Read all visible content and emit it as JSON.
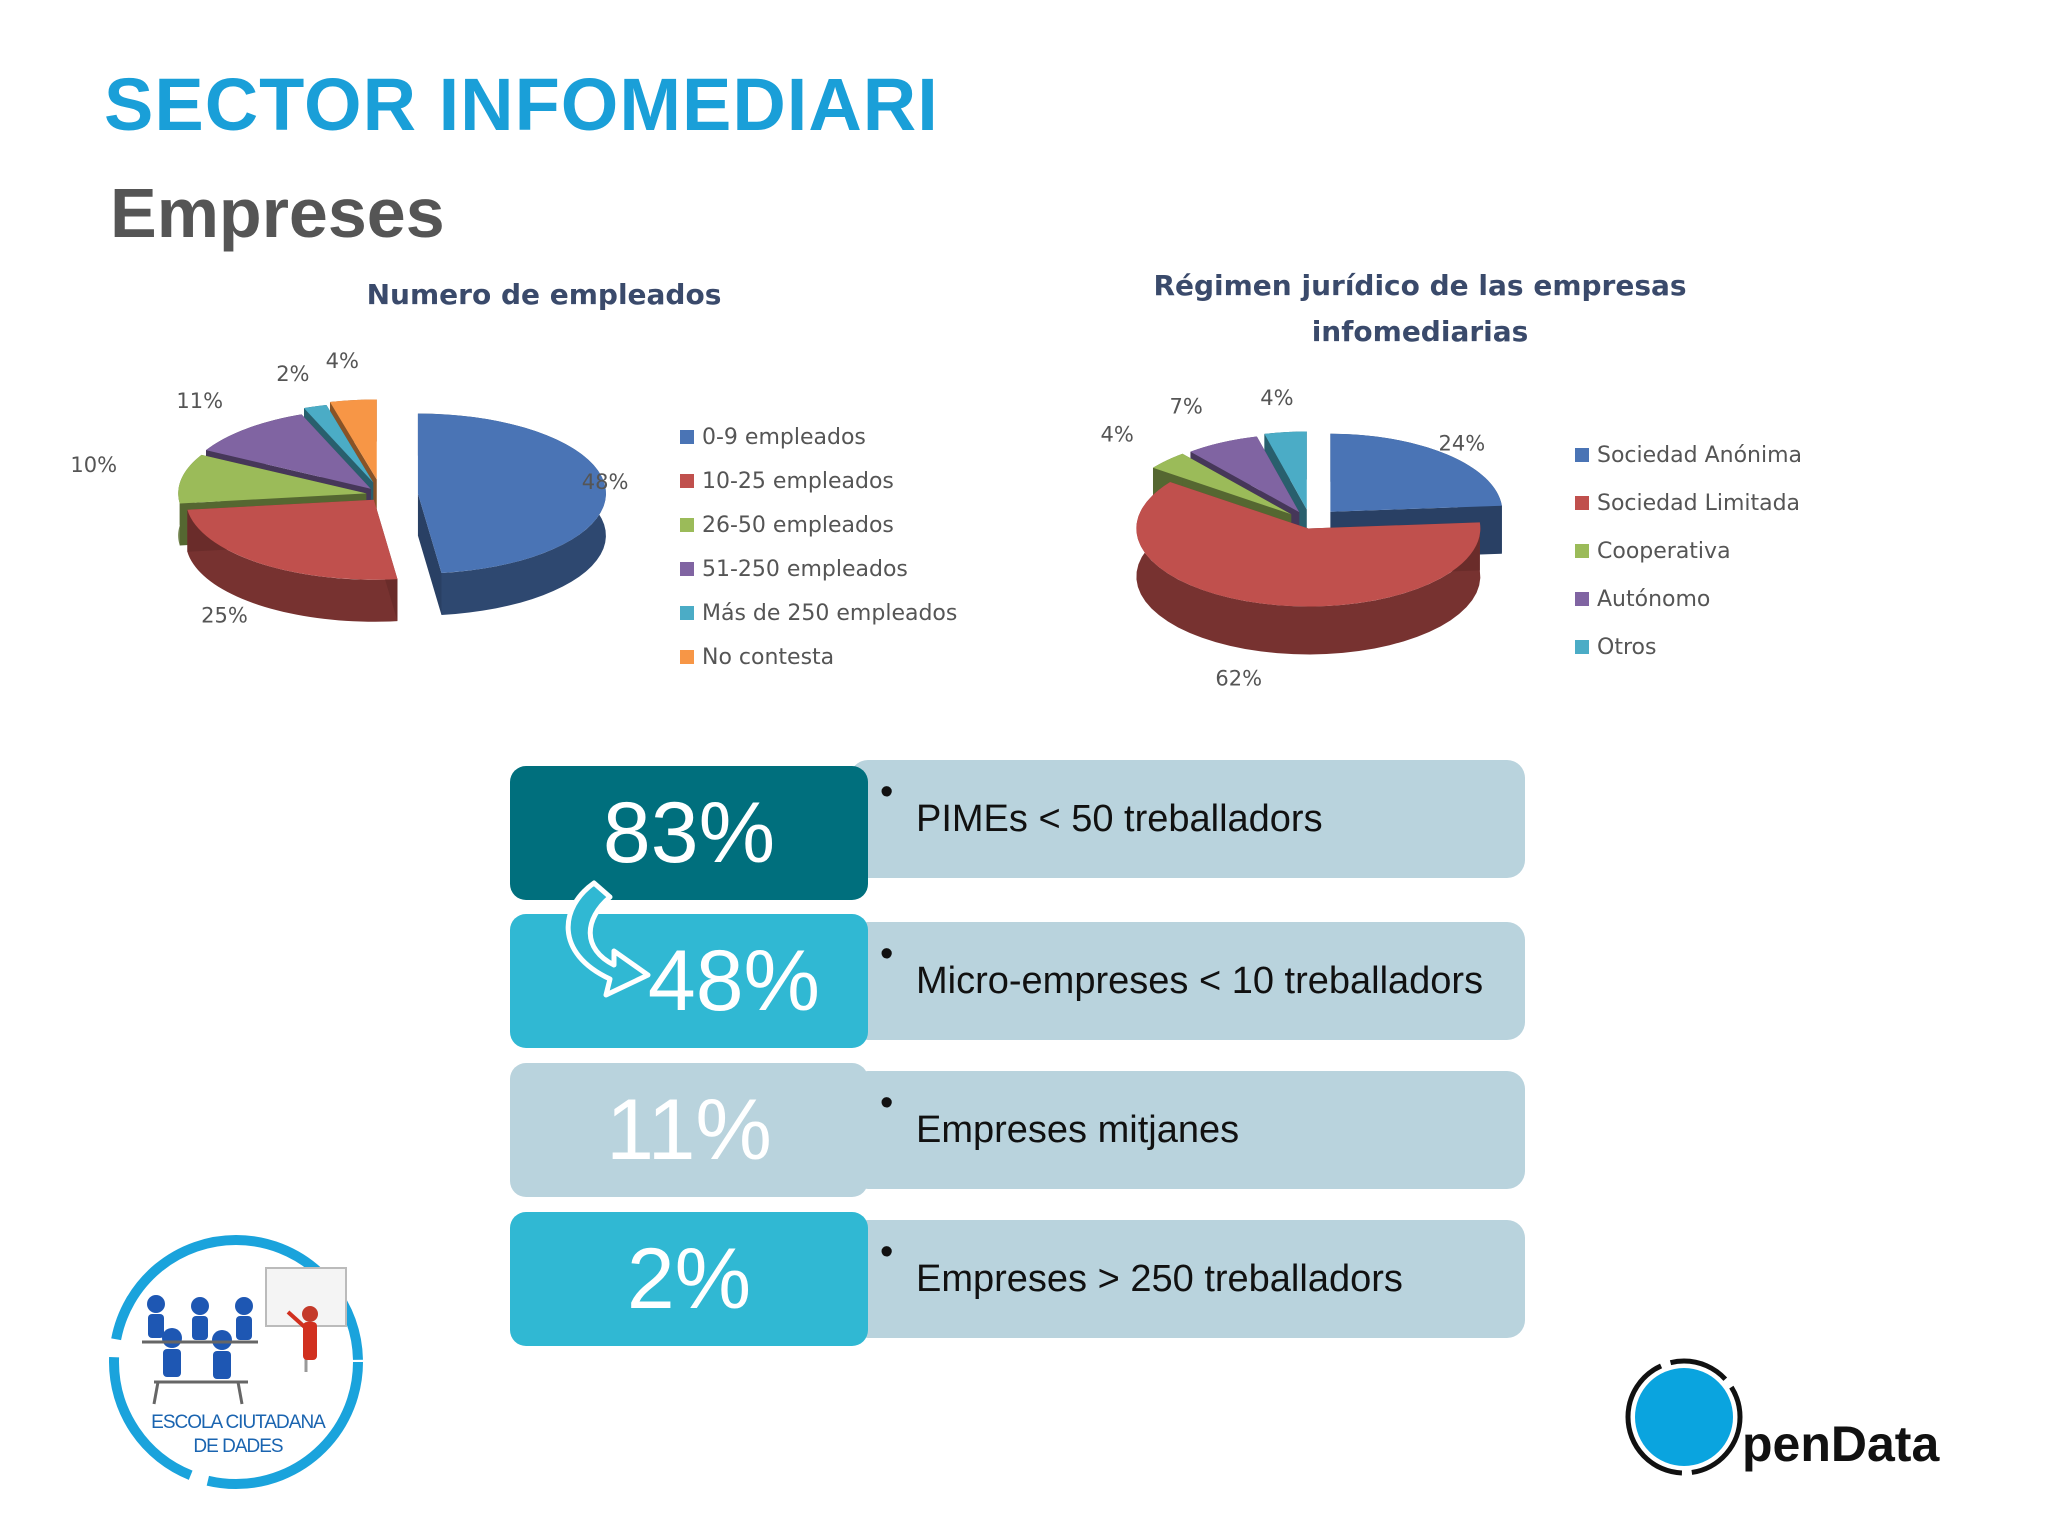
{
  "slide": {
    "title": "SECTOR INFOMEDIARI",
    "subtitle": "Empreses"
  },
  "colors": {
    "title": "#1a9fd8",
    "subtitle": "#555555",
    "dark_teal": "#006f7d",
    "cyan": "#30b8d3",
    "grey_blue": "#b9d3dd",
    "pie_blue": "#4a74b5",
    "pie_red": "#c0504d",
    "pie_green": "#9bbb59",
    "pie_purple": "#8064a2",
    "pie_cyan": "#4bacc6",
    "pie_orange": "#f79646"
  },
  "chart_data": [
    {
      "type": "pie",
      "title": "Numero de empleados",
      "legend_position": "right",
      "categories": [
        "0-9 empleados",
        "10-25 empleados",
        "26-50 empleados",
        "51-250 empleados",
        "Más de 250 empleados",
        "No contesta"
      ],
      "values": [
        48,
        25,
        10,
        11,
        2,
        4
      ],
      "labels": [
        "48%",
        "25%",
        "10%",
        "11%",
        "2%",
        "4%"
      ],
      "colors": [
        "#4a74b5",
        "#c0504d",
        "#9bbb59",
        "#8064a2",
        "#4bacc6",
        "#f79646"
      ]
    },
    {
      "type": "pie",
      "title": "Régimen jurídico de las empresas infomediarias",
      "title_lines": [
        "Régimen jurídico de las empresas",
        "infomediarias"
      ],
      "legend_position": "right",
      "categories": [
        "Sociedad Anónima",
        "Sociedad Limitada",
        "Cooperativa",
        "Autónomo",
        "Otros"
      ],
      "values": [
        24,
        62,
        4,
        7,
        4
      ],
      "labels": [
        "24%",
        "62%",
        "4%",
        "7%",
        "4%"
      ],
      "colors": [
        "#4a74b5",
        "#c0504d",
        "#9bbb59",
        "#8064a2",
        "#4bacc6"
      ]
    }
  ],
  "stats": [
    {
      "value": "83%",
      "bullet": "•",
      "text": "PIMEs < 50 treballadors",
      "color": "#006f7d"
    },
    {
      "value": "48%",
      "bullet": "•",
      "text": "Micro-empreses < 10 treballadors",
      "color": "#30b8d3"
    },
    {
      "value": "11%",
      "bullet": "•",
      "text": "Empreses mitjanes",
      "color": "#b9d3dd"
    },
    {
      "value": "2%",
      "bullet": "•",
      "text": "Empreses > 250 treballadors",
      "color": "#30b8d3"
    }
  ],
  "logos": {
    "school_line1": "ESCOLA CIUTADANA",
    "school_line2": "DE DADES",
    "opendata_text": "penData"
  }
}
